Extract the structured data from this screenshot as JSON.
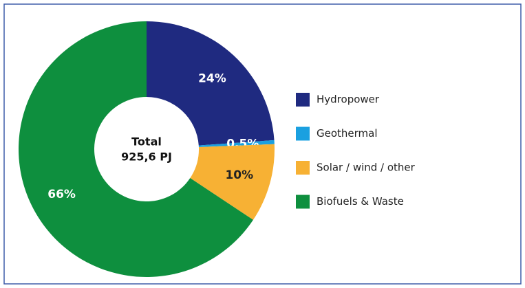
{
  "chart_data": {
    "type": "donut",
    "center_title": "Total",
    "center_value": "925,6 PJ",
    "categories": [
      "Hydropower",
      "Geothermal",
      "Solar / wind / other",
      "Biofuels & Waste"
    ],
    "values": [
      24,
      0.5,
      10,
      66
    ],
    "value_labels": [
      "24%",
      "0.5%",
      "10%",
      "66%"
    ],
    "colors": [
      "#1f2a80",
      "#1aa0e0",
      "#f7b134",
      "#0e8f3e"
    ],
    "legend": "right"
  }
}
